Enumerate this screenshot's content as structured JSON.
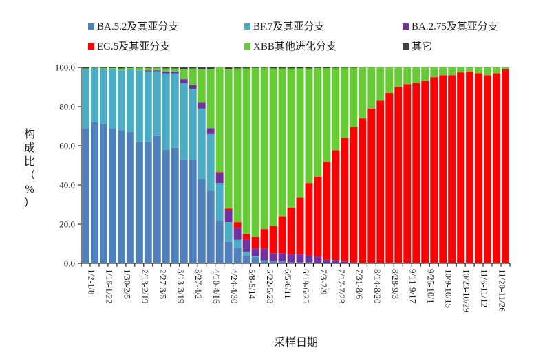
{
  "chart_data": {
    "type": "bar",
    "stacked": true,
    "xlabel": "采样日期",
    "ylabel_lines": [
      "构",
      "成",
      "比",
      "（",
      "%",
      "）"
    ],
    "ylim": [
      0,
      100
    ],
    "yticks": [
      "0.0",
      "20.0",
      "40.0",
      "60.0",
      "80.0",
      "100.0"
    ],
    "legend_position": "top",
    "grid": false,
    "categories": [
      "1/2-1/8",
      "1/9-1/15",
      "1/16-1/22",
      "1/23-1/29",
      "1/30-2/5",
      "2/6-2/12",
      "2/13-2/19",
      "2/20-2/26",
      "2/27-3/5",
      "3/6-3/12",
      "3/13-3/19",
      "3/20-3/26",
      "3/27-4/2",
      "4/3-4/9",
      "4/10-4/16",
      "4/17-4/23",
      "4/24-4/30",
      "5/1-5/7",
      "5/8-5/14",
      "5/15-5/21",
      "5/22-5/28",
      "5/29-6/4",
      "6/5-6/11",
      "6/12-6/18",
      "6/19-6/25",
      "6/26-7/2",
      "7/3-7/9",
      "7/10-7/16",
      "7/17-7/23",
      "7/24-7/30",
      "7/31-8/6",
      "8/7-8/13",
      "8/14-8/20",
      "8/21-8/27",
      "8/28-9/3",
      "9/4-9/10",
      "9/11-9/17",
      "9/18-9/24",
      "9/25-10/1",
      "10/2-10/8",
      "10/9-10/15",
      "10/16-10/22",
      "10/23-10/29",
      "10/30-11/5",
      "11/6-11/12",
      "11/13-11/19",
      "11/20-11/26",
      "11/27-12/3"
    ],
    "visible_tick_labels": [
      "1/2-1/8",
      "1/16-1/22",
      "1/30-2/5",
      "2/13-2/19",
      "2/27-3/5",
      "3/13-3/19",
      "3/27-4/2",
      "4/10-4/16",
      "4/24-4/30",
      "5/8-5/14",
      "5/22-5/28",
      "6/5-6/11",
      "6/19-6/25",
      "7/3-7/9",
      "7/17-7/23",
      "7/31-8/6",
      "8/14-8/20",
      "8/28-9/3",
      "9/11-9/17",
      "9/25-10/1",
      "10/9-10/15",
      "10/23-10/29",
      "11/6-11/12",
      "11/20-11/26"
    ],
    "series": [
      {
        "name": "BA.5.2及其亚分支",
        "color": "#4f81bd",
        "values": [
          69,
          72,
          71,
          69,
          68,
          67,
          62,
          62,
          65,
          58,
          59,
          53,
          53,
          43,
          37,
          22,
          11,
          8,
          4,
          3,
          1,
          1,
          1,
          0.5,
          0.5,
          0.5,
          0.3,
          0.3,
          0.2,
          0,
          0,
          0,
          0,
          0,
          0,
          0,
          0,
          0,
          0,
          0,
          0,
          0,
          0,
          0,
          0,
          0,
          0,
          0
        ]
      },
      {
        "name": "BF.7及其亚分支",
        "color": "#4bacc6",
        "values": [
          30,
          27.5,
          28,
          30,
          30.5,
          32,
          36.5,
          36,
          33,
          39,
          38,
          39,
          36,
          36,
          29,
          19,
          10,
          4,
          2,
          0.5,
          0.5,
          0,
          0,
          0,
          0,
          0,
          0,
          0,
          0,
          0,
          0,
          0,
          0,
          0,
          0,
          0,
          0,
          0,
          0,
          0,
          0,
          0,
          0,
          0,
          0,
          0,
          0,
          0
        ]
      },
      {
        "name": "BA.2.75及其亚分支",
        "color": "#7030a0",
        "values": [
          0,
          0,
          0,
          0,
          0,
          0,
          0,
          0.5,
          0.5,
          1,
          1,
          2,
          2,
          3,
          3,
          5,
          6,
          6,
          6,
          4,
          6,
          4,
          4,
          4,
          4,
          3.5,
          3,
          1.5,
          1.5,
          1,
          0.5,
          0,
          0,
          0,
          0,
          0,
          0,
          0,
          0,
          0,
          0,
          0,
          0,
          0,
          0,
          0,
          0,
          0
        ]
      },
      {
        "name": "EG.5及其亚分支",
        "color": "#ff0000",
        "values": [
          0,
          0,
          0,
          0,
          0,
          0,
          0,
          0,
          0,
          0,
          0,
          0,
          0,
          0,
          0,
          0.5,
          1,
          3,
          3,
          6,
          10,
          14,
          19,
          24,
          29,
          37,
          41,
          50,
          56,
          63,
          69,
          74,
          79,
          83,
          87,
          90,
          91.5,
          92,
          93,
          95,
          96,
          96,
          97.5,
          98,
          97,
          96,
          97,
          99
        ]
      },
      {
        "name": "XBB其他进化分支",
        "color": "#66cc33",
        "values": [
          0.5,
          0.3,
          0.7,
          0.7,
          1,
          0.7,
          1.3,
          1.2,
          1.3,
          1.5,
          1.5,
          5,
          8.5,
          17,
          30,
          55,
          71,
          78.5,
          84.5,
          86.2,
          82.3,
          80.5,
          75.5,
          71,
          66,
          58.5,
          55.4,
          47.8,
          42,
          35.8,
          30.3,
          26,
          21,
          17,
          13,
          10,
          8.5,
          8,
          7,
          5,
          4,
          4,
          2.5,
          2,
          3,
          4,
          3,
          1
        ]
      },
      {
        "name": "其它",
        "color": "#404040",
        "values": [
          0.5,
          0.2,
          0.3,
          0.3,
          0.5,
          0.3,
          0.2,
          0.3,
          0.2,
          0.5,
          0.5,
          1,
          0.5,
          1,
          1,
          0.5,
          1,
          0.5,
          0.5,
          0.3,
          0.2,
          0.5,
          0.5,
          0.5,
          0.5,
          0.5,
          0.3,
          0.4,
          0.3,
          0.2,
          0.2,
          0,
          0,
          0,
          0,
          0,
          0,
          0,
          0,
          0,
          0,
          0,
          0,
          0,
          0,
          0,
          0,
          0
        ]
      }
    ],
    "legend_order": [
      0,
      1,
      2,
      3,
      4,
      5
    ]
  }
}
